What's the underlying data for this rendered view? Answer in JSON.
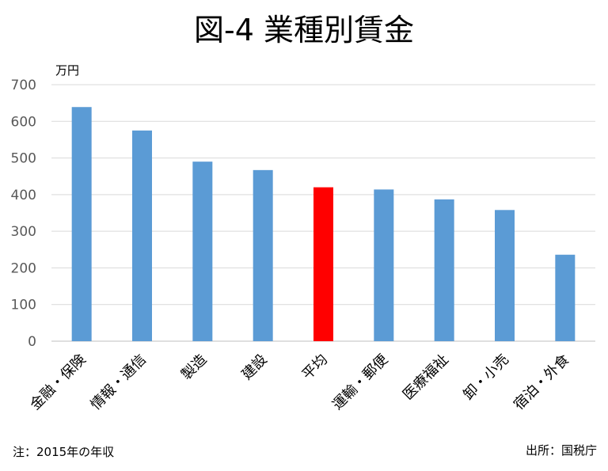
{
  "chart_data": {
    "type": "bar",
    "title": "図-4 業種別賃金",
    "ylabel": "万円",
    "ylim": [
      0,
      700
    ],
    "yticks": [
      0,
      100,
      200,
      300,
      400,
      500,
      600,
      700
    ],
    "grid": true,
    "categories": [
      "金融・保険",
      "情報・通信",
      "製造",
      "建設",
      "平均",
      "運輸・郵便",
      "医療福祉",
      "卸・小売",
      "宿泊・外食"
    ],
    "values": [
      639,
      575,
      490,
      467,
      420,
      414,
      387,
      358,
      236
    ],
    "colors": {
      "bar": "#5b9bd5",
      "highlight": "#ff0000",
      "grid": "#d9d9d9",
      "axis": "#bfbfbf"
    },
    "highlight_category": "平均"
  },
  "footer": {
    "note": "注：2015年の年収",
    "source": "出所：国税庁"
  }
}
